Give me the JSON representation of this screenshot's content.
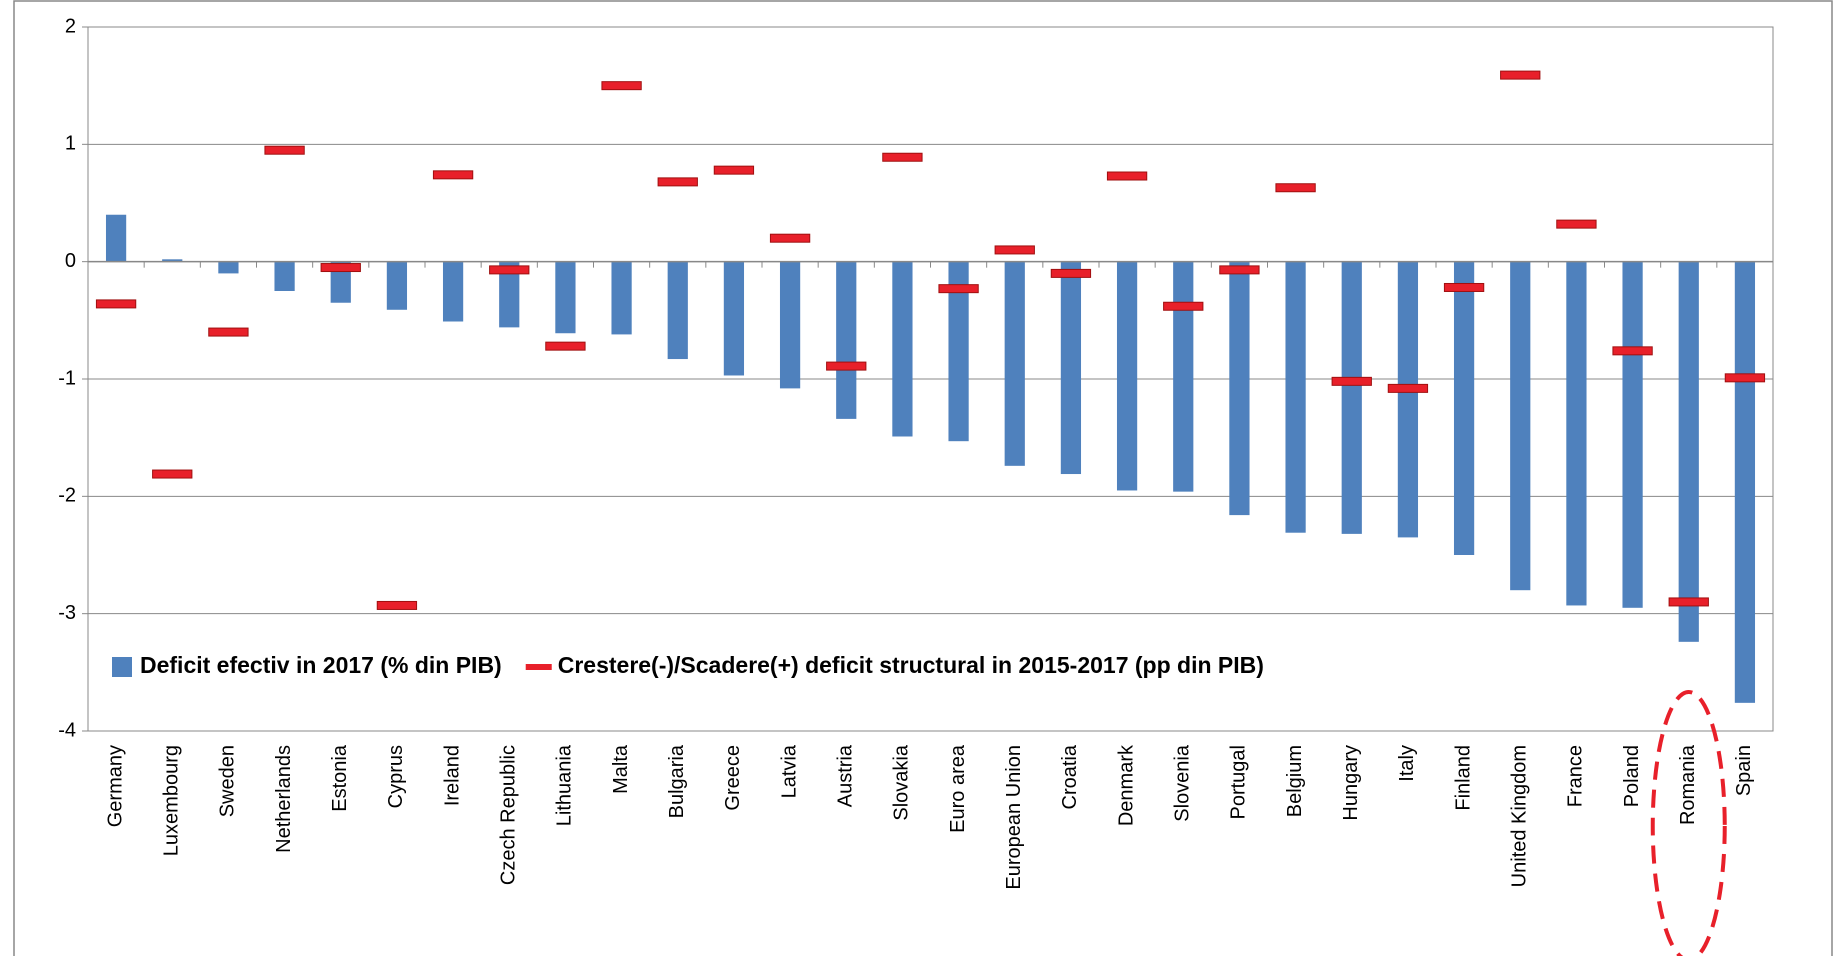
{
  "chart_data": {
    "type": "bar",
    "categories": [
      "Germany",
      "Luxembourg",
      "Sweden",
      "Netherlands",
      "Estonia",
      "Cyprus",
      "Ireland",
      "Czech Republic",
      "Lithuania",
      "Malta",
      "Bulgaria",
      "Greece",
      "Latvia",
      "Austria",
      "Slovakia",
      "Euro area",
      "European Union",
      "Croatia",
      "Denmark",
      "Slovenia",
      "Portugal",
      "Belgium",
      "Hungary",
      "Italy",
      "Finland",
      "United Kingdom",
      "France",
      "Poland",
      "Romania",
      "Spain"
    ],
    "series": [
      {
        "name": "Deficit efectiv in 2017 (% din PIB)",
        "color": "#4f81bd",
        "type": "bar",
        "values": [
          0.4,
          0.02,
          -0.1,
          -0.25,
          -0.35,
          -0.41,
          -0.51,
          -0.56,
          -0.61,
          -0.62,
          -0.83,
          -0.97,
          -1.08,
          -1.34,
          -1.49,
          -1.53,
          -1.74,
          -1.81,
          -1.95,
          -1.96,
          -2.16,
          -2.31,
          -2.32,
          -2.35,
          -2.5,
          -2.8,
          -2.93,
          -2.95,
          -3.24,
          -3.76
        ]
      },
      {
        "name": "Crestere(-)/Scadere(+) deficit structural in 2015-2017 (pp din PIB)",
        "color": "#e8202a",
        "type": "marker",
        "values": [
          -0.36,
          -1.81,
          -0.6,
          0.95,
          -0.05,
          -2.93,
          0.74,
          -0.07,
          -0.72,
          1.5,
          0.68,
          0.78,
          0.2,
          -0.89,
          0.89,
          -0.23,
          0.1,
          -0.1,
          0.73,
          -0.38,
          -0.07,
          0.63,
          -1.02,
          -1.08,
          -0.22,
          1.59,
          0.32,
          -0.76,
          -2.9,
          -0.99
        ]
      }
    ],
    "ylim": [
      -4,
      2
    ],
    "yticks": [
      2,
      1,
      0,
      -1,
      -2,
      -3,
      -4
    ],
    "grid": true,
    "legend": "bottom-left"
  }
}
